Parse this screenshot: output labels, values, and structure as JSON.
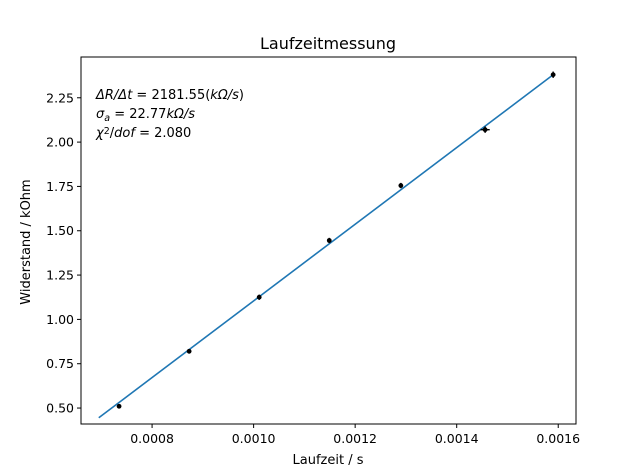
{
  "chart_data": {
    "type": "scatter",
    "title": "Laufzeitmessung",
    "xlabel": "Laufzeit / s",
    "ylabel": "Widerstand / kOhm",
    "xlim": [
      0.00066,
      0.001635
    ],
    "ylim": [
      0.41,
      2.48
    ],
    "x_ticks": [
      0.0008,
      0.001,
      0.0012,
      0.0014,
      0.0016
    ],
    "x_tick_labels": [
      "0.0008",
      "0.0010",
      "0.0012",
      "0.0014",
      "0.0016"
    ],
    "y_ticks": [
      0.5,
      0.75,
      1.0,
      1.25,
      1.5,
      1.75,
      2.0,
      2.25
    ],
    "y_tick_labels": [
      "0.50",
      "0.75",
      "1.00",
      "1.25",
      "1.50",
      "1.75",
      "2.00",
      "2.25"
    ],
    "grid": false,
    "series": [
      {
        "kind": "points_with_errorbars",
        "color": "#000000",
        "x": [
          0.000735,
          0.000873,
          0.001011,
          0.001149,
          0.00129,
          0.001456,
          0.00159
        ],
        "y": [
          0.51,
          0.82,
          1.125,
          1.445,
          1.755,
          2.07,
          2.38
        ],
        "x_err": [
          2e-06,
          2e-06,
          3e-06,
          3e-06,
          3e-06,
          9e-06,
          3e-06
        ],
        "y_err": [
          0.012,
          0.012,
          0.015,
          0.015,
          0.015,
          0.018,
          0.018
        ]
      },
      {
        "kind": "fit_line",
        "color": "#1f77b4",
        "x": [
          0.000695,
          0.00159
        ],
        "y": [
          0.445,
          2.38
        ]
      }
    ],
    "annotations": [
      {
        "parts": [
          [
            "ΔR/Δt",
            "i"
          ],
          [
            " = 2181.55(",
            "n"
          ],
          [
            "kΩ/s",
            "i"
          ],
          [
            ")",
            "n"
          ]
        ]
      },
      {
        "parts": [
          [
            "σ",
            "i"
          ],
          [
            "a",
            "sub"
          ],
          [
            " = 22.77",
            "n"
          ],
          [
            "kΩ/s",
            "i"
          ]
        ]
      },
      {
        "parts": [
          [
            "χ",
            "i"
          ],
          [
            "2",
            "sup"
          ],
          [
            "/",
            "n"
          ],
          [
            "dof",
            "i"
          ],
          [
            " = 2.080",
            "n"
          ]
        ]
      }
    ]
  }
}
